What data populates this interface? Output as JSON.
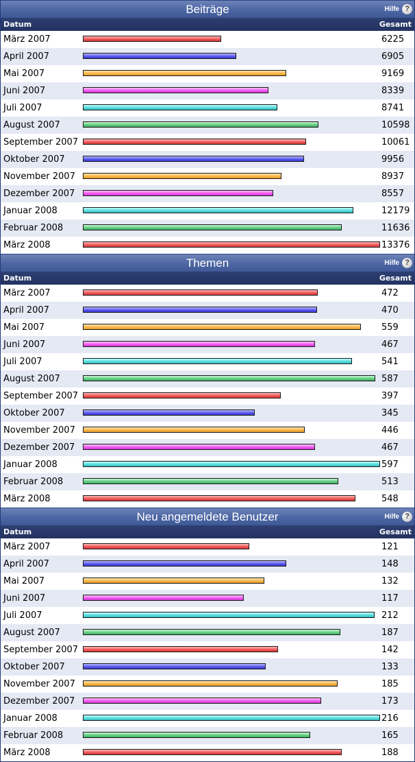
{
  "columns": {
    "date": "Datum",
    "total": "Gesamt"
  },
  "help": {
    "label": "Hilfe",
    "icon": "help-icon"
  },
  "months": [
    "März 2007",
    "April 2007",
    "Mai 2007",
    "Juni 2007",
    "Juli 2007",
    "August 2007",
    "September 2007",
    "Oktober 2007",
    "November 2007",
    "Dezember 2007",
    "Januar 2008",
    "Februar 2008",
    "März 2008"
  ],
  "bar_colors": [
    "red",
    "blue",
    "orange",
    "magenta",
    "cyan",
    "green"
  ],
  "sections": [
    {
      "title": "Beiträge",
      "values": [
        6225,
        6905,
        9169,
        8339,
        8741,
        10598,
        10061,
        9956,
        8937,
        8557,
        12179,
        11636,
        13376
      ]
    },
    {
      "title": "Themen",
      "values": [
        472,
        470,
        559,
        467,
        541,
        587,
        397,
        345,
        446,
        467,
        597,
        513,
        548
      ]
    },
    {
      "title": "Neu angemeldete Benutzer",
      "values": [
        121,
        148,
        132,
        117,
        212,
        187,
        142,
        133,
        185,
        173,
        216,
        165,
        188
      ]
    }
  ]
}
